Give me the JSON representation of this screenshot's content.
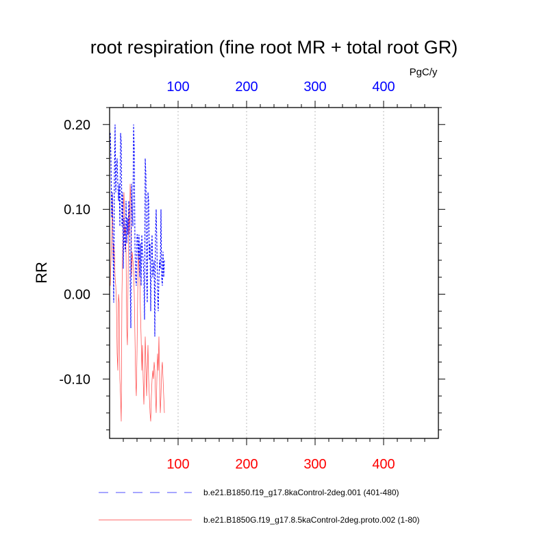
{
  "chart_data": {
    "type": "line",
    "title": "root respiration (fine root MR + total root GR)",
    "ylabel": "RR",
    "top_axis_unit": "PgC/y",
    "xlim": [
      0,
      480
    ],
    "ylim": [
      -0.17,
      0.22
    ],
    "grid": "vertical dotted at x ticks",
    "x_ticks": [
      100,
      200,
      300,
      400
    ],
    "x_tick_labels": [
      "100",
      "200",
      "300",
      "400"
    ],
    "y_ticks": [
      0.2,
      0.1,
      0.0,
      -0.1
    ],
    "y_tick_labels": [
      "0.20",
      "0.10",
      "0.00",
      "-0.10"
    ],
    "top_axis_color": "#0000ff",
    "bottom_axis_color": "#ff0000",
    "legend_position": "bottom",
    "series": [
      {
        "name": "b.e21.B1850.f19_g17.8kaControl-2deg.001 (401-480)",
        "color": "#0000ff",
        "style": "dashed",
        "x": [
          1,
          2,
          3,
          4,
          5,
          6,
          7,
          8,
          9,
          10,
          11,
          12,
          13,
          14,
          15,
          16,
          17,
          18,
          19,
          20,
          21,
          22,
          23,
          24,
          25,
          26,
          27,
          28,
          29,
          30,
          31,
          32,
          33,
          34,
          35,
          36,
          37,
          38,
          39,
          40,
          41,
          42,
          43,
          44,
          45,
          46,
          47,
          48,
          49,
          50,
          51,
          52,
          53,
          54,
          55,
          56,
          57,
          58,
          59,
          60,
          61,
          62,
          63,
          64,
          65,
          66,
          67,
          68,
          69,
          70,
          71,
          72,
          73,
          74,
          75,
          76,
          77,
          78,
          79,
          80
        ],
        "values": [
          0.19,
          0.16,
          0.09,
          0.12,
          0.06,
          -0.01,
          0.14,
          0.2,
          0.12,
          0.15,
          0.16,
          0.13,
          0.11,
          0.13,
          0.08,
          0.19,
          0.18,
          0.08,
          0.12,
          0.03,
          0.09,
          0.06,
          0.05,
          0.11,
          0.06,
          0.09,
          0.07,
          0.11,
          0.1,
          0.02,
          -0.04,
          0.13,
          0.1,
          0.08,
          0.2,
          0.17,
          0.06,
          0.02,
          0.01,
          0.07,
          0.07,
          0.04,
          0.07,
          0.02,
          0.06,
          0.01,
          0.07,
          0.05,
          0.04,
          0.02,
          -0.03,
          0.16,
          0.14,
          0.02,
          -0.01,
          0.12,
          0.11,
          0.04,
          0.06,
          -0.02,
          0.05,
          0.07,
          0.02,
          0.03,
          0.04,
          -0.05,
          0.07,
          0.1,
          0.06,
          0.0,
          -0.02,
          0.02,
          0.04,
          0.03,
          0.1,
          0.02,
          0.01,
          0.05,
          0.02,
          0.04
        ]
      },
      {
        "name": "b.e21.B1850G.f19_g17.8.5kaControl-2deg.proto.002 (1-80)",
        "color": "#ff0000",
        "style": "solid",
        "x": [
          1,
          2,
          3,
          4,
          5,
          6,
          7,
          8,
          9,
          10,
          11,
          12,
          13,
          14,
          15,
          16,
          17,
          18,
          19,
          20,
          21,
          22,
          23,
          24,
          25,
          26,
          27,
          28,
          29,
          30,
          31,
          32,
          33,
          34,
          35,
          36,
          37,
          38,
          39,
          40,
          41,
          42,
          43,
          44,
          45,
          46,
          47,
          48,
          49,
          50,
          51,
          52,
          53,
          54,
          55,
          56,
          57,
          58,
          59,
          60,
          61,
          62,
          63,
          64,
          65,
          66,
          67,
          68,
          69,
          70,
          71,
          72,
          73,
          74,
          75,
          76,
          77,
          78,
          79,
          80
        ],
        "values": [
          0.01,
          0.04,
          0.07,
          0.12,
          0.04,
          0.06,
          0.05,
          0.02,
          0.01,
          -0.01,
          -0.07,
          -0.09,
          0.0,
          -0.01,
          -0.1,
          -0.12,
          -0.15,
          0.0,
          0.05,
          0.1,
          0.12,
          0.07,
          0.08,
          0.05,
          -0.04,
          -0.06,
          0.02,
          0.1,
          0.07,
          0.13,
          0.11,
          0.02,
          0.05,
          0.04,
          0.03,
          0.0,
          -0.05,
          -0.1,
          -0.12,
          -0.07,
          0.0,
          0.05,
          0.03,
          0.02,
          -0.02,
          -0.05,
          -0.09,
          -0.06,
          -0.1,
          -0.13,
          -0.1,
          -0.05,
          -0.08,
          -0.12,
          -0.09,
          -0.06,
          -0.1,
          -0.12,
          -0.14,
          -0.15,
          -0.12,
          -0.1,
          -0.09,
          -0.1,
          -0.08,
          -0.09,
          -0.12,
          -0.14,
          -0.1,
          -0.07,
          -0.09,
          -0.05,
          -0.1,
          -0.14,
          -0.12,
          -0.09,
          -0.08,
          -0.1,
          -0.12,
          -0.14
        ]
      }
    ]
  }
}
